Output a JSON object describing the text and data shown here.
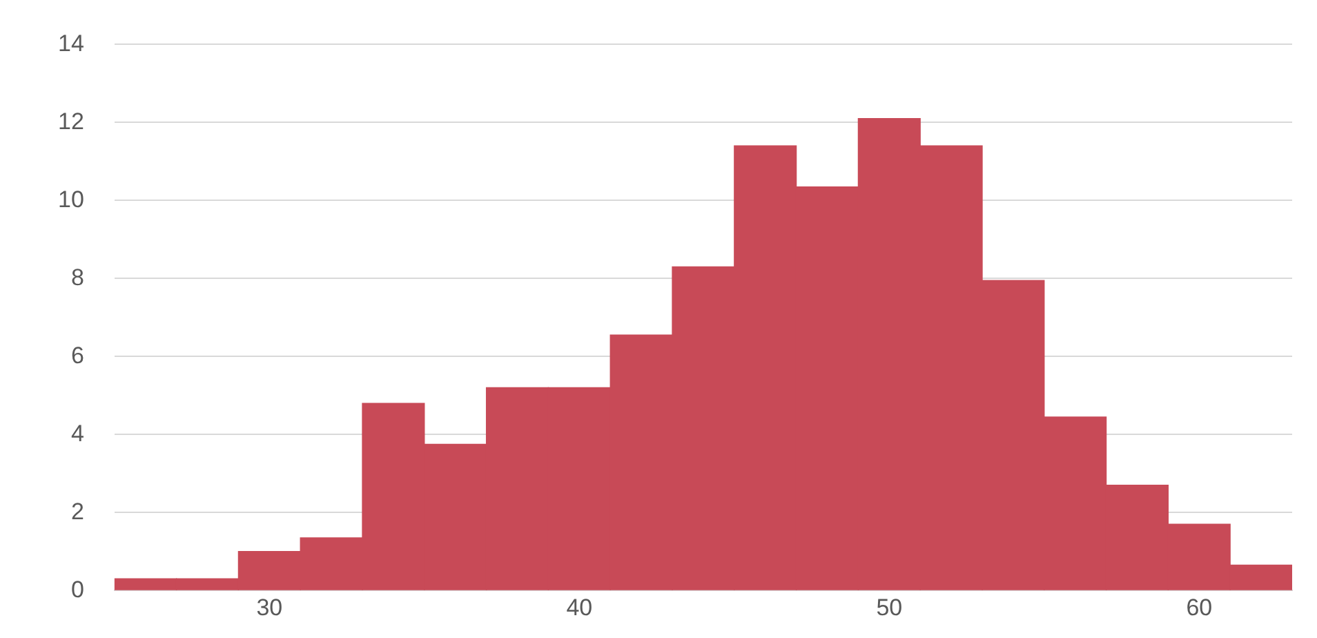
{
  "chart_data": {
    "type": "histogram",
    "bins": [
      25,
      27,
      29,
      31,
      33,
      35,
      37,
      39,
      41,
      43,
      45,
      47,
      49,
      51,
      53,
      55,
      57,
      59,
      61,
      63
    ],
    "values": [
      0.3,
      0.3,
      1.0,
      1.35,
      4.8,
      3.75,
      5.2,
      5.2,
      6.55,
      8.3,
      11.4,
      10.35,
      12.1,
      11.4,
      7.95,
      4.45,
      2.7,
      1.7,
      0.65
    ],
    "color": "#c84a57",
    "xlim": [
      25,
      63
    ],
    "xticks": [
      30,
      40,
      50,
      60
    ],
    "ylim": [
      0,
      14
    ],
    "yticks": [
      0,
      2,
      4,
      6,
      8,
      10,
      12,
      14
    ],
    "grid": "y"
  }
}
